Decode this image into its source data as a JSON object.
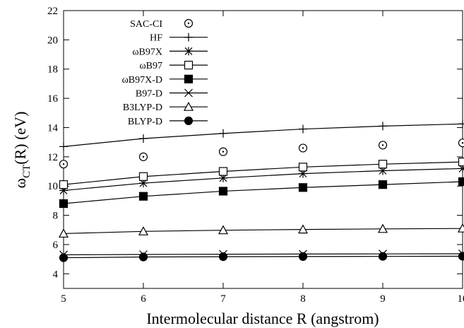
{
  "chart_data": {
    "type": "line",
    "xlabel": "Intermolecular distance R (angstrom)",
    "ylabel": {
      "main": "ω",
      "sub": "CT",
      "rest": "(R) (eV)"
    },
    "xlim": [
      5,
      10
    ],
    "ylim": [
      3,
      22
    ],
    "x_ticks": [
      5,
      6,
      7,
      8,
      9,
      10
    ],
    "y_ticks": [
      4,
      6,
      8,
      10,
      12,
      14,
      16,
      18,
      20,
      22
    ],
    "grid": false,
    "legend_placement": "top-left",
    "x": [
      5,
      6,
      7,
      8,
      9,
      10
    ],
    "series": [
      {
        "name": "SAC-CI",
        "marker": "circle-dot",
        "line": false,
        "values": [
          11.5,
          12.0,
          12.35,
          12.6,
          12.8,
          12.95
        ]
      },
      {
        "name": "HF",
        "marker": "plus",
        "line": true,
        "values": [
          12.7,
          13.25,
          13.6,
          13.9,
          14.1,
          14.25
        ]
      },
      {
        "name": "ωB97X",
        "marker": "star",
        "line": true,
        "values": [
          9.7,
          10.2,
          10.55,
          10.85,
          11.05,
          11.2
        ]
      },
      {
        "name": "ωB97",
        "marker": "square-open",
        "line": true,
        "values": [
          10.1,
          10.65,
          11.0,
          11.3,
          11.5,
          11.65
        ]
      },
      {
        "name": "ωB97X-D",
        "marker": "square-filled",
        "line": true,
        "values": [
          8.8,
          9.3,
          9.65,
          9.9,
          10.1,
          10.3
        ]
      },
      {
        "name": "B97-D",
        "marker": "cross",
        "line": true,
        "values": [
          5.3,
          5.32,
          5.34,
          5.35,
          5.36,
          5.37
        ]
      },
      {
        "name": "B3LYP-D",
        "marker": "triangle-open",
        "line": true,
        "values": [
          6.75,
          6.9,
          6.98,
          7.03,
          7.07,
          7.1
        ]
      },
      {
        "name": "BLYP-D",
        "marker": "circle-filled",
        "line": true,
        "values": [
          5.1,
          5.15,
          5.17,
          5.18,
          5.19,
          5.2
        ]
      }
    ]
  }
}
